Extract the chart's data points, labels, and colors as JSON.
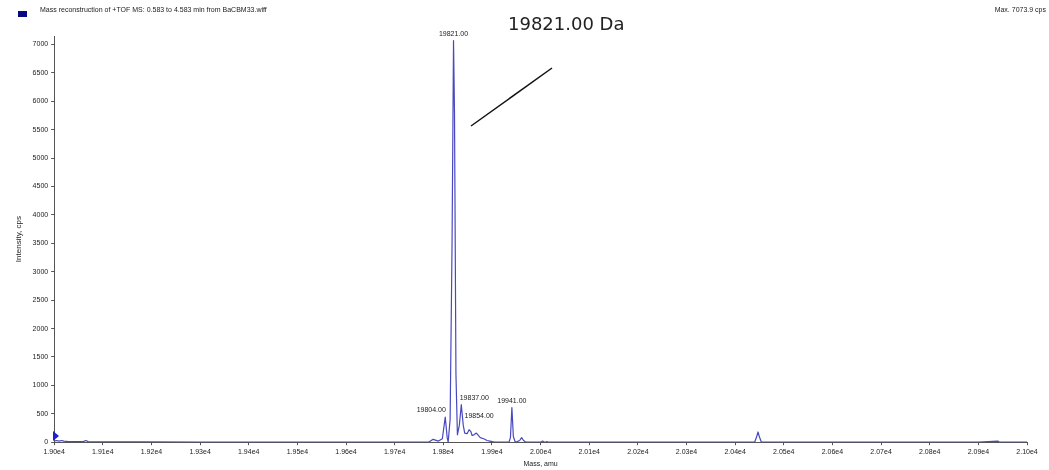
{
  "chart_data": {
    "type": "line",
    "title": "Mass reconstruction of +TOF MS: 0.583 to 4.583 min from BaCBM33.wiff",
    "xlabel": "Mass, amu",
    "ylabel": "Intensity, cps",
    "x": [
      19000,
      19005,
      19010,
      19015,
      19020,
      19030,
      19060,
      19065,
      19070,
      19300,
      19700,
      19770,
      19779,
      19790,
      19798,
      19804,
      19808,
      19810,
      19814,
      19818,
      19821,
      19823,
      19826,
      19829,
      19833,
      19837,
      19841,
      19844,
      19849,
      19853,
      19857,
      19859,
      19863,
      19868,
      19872,
      19876,
      19883,
      19890,
      19896,
      19905,
      19935,
      19938,
      19941,
      19944,
      19948,
      19952,
      19957,
      19961,
      19965,
      19970,
      20000,
      20004,
      20008,
      20010,
      20013,
      20016,
      20200,
      20440,
      20444,
      20447,
      20450,
      20454,
      20600,
      20900,
      20940,
      20943,
      21000
    ],
    "series": [
      {
        "color": "#4848c0",
        "values": [
          20,
          30,
          20,
          30,
          20,
          10,
          10,
          30,
          10,
          0,
          0,
          0,
          50,
          20,
          60,
          440,
          80,
          0,
          400,
          3500,
          7070,
          5800,
          1200,
          130,
          300,
          660,
          300,
          160,
          150,
          220,
          180,
          120,
          130,
          160,
          120,
          80,
          60,
          30,
          20,
          0,
          0,
          80,
          610,
          100,
          0,
          10,
          30,
          80,
          30,
          0,
          0,
          20,
          0,
          0,
          10,
          0,
          0,
          0,
          90,
          180,
          90,
          0,
          0,
          0,
          20,
          0,
          0
        ]
      }
    ],
    "xlim": [
      19000,
      21000
    ],
    "ylim": [
      0,
      7150
    ],
    "xticks": [
      {
        "value": 19000,
        "label": "1.90e4"
      },
      {
        "value": 19100,
        "label": "1.91e4"
      },
      {
        "value": 19200,
        "label": "1.92e4"
      },
      {
        "value": 19300,
        "label": "1.93e4"
      },
      {
        "value": 19400,
        "label": "1.94e4"
      },
      {
        "value": 19500,
        "label": "1.95e4"
      },
      {
        "value": 19600,
        "label": "1.96e4"
      },
      {
        "value": 19700,
        "label": "1.97e4"
      },
      {
        "value": 19800,
        "label": "1.98e4"
      },
      {
        "value": 19900,
        "label": "1.99e4"
      },
      {
        "value": 20000,
        "label": "2.00e4"
      },
      {
        "value": 20100,
        "label": "2.01e4"
      },
      {
        "value": 20200,
        "label": "2.02e4"
      },
      {
        "value": 20300,
        "label": "2.03e4"
      },
      {
        "value": 20400,
        "label": "2.04e4"
      },
      {
        "value": 20500,
        "label": "2.05e4"
      },
      {
        "value": 20600,
        "label": "2.06e4"
      },
      {
        "value": 20700,
        "label": "2.07e4"
      },
      {
        "value": 20800,
        "label": "2.08e4"
      },
      {
        "value": 20900,
        "label": "2.09e4"
      },
      {
        "value": 21000,
        "label": "2.10e4"
      }
    ],
    "yticks": [
      0,
      500,
      1000,
      1500,
      2000,
      2500,
      3000,
      3500,
      4000,
      4500,
      5000,
      5500,
      6000,
      6500,
      7000
    ],
    "grid": false,
    "legend": false,
    "marker": "none",
    "line_style": "solid",
    "annotations": [
      "Max. 7073.9 cps",
      {
        "text": "19804.00",
        "x": 19804,
        "y": 440
      },
      {
        "text": "19821.00",
        "x": 19821,
        "y": 7070
      },
      {
        "text": "19837.00",
        "x": 19837,
        "y": 660
      },
      {
        "text": "19854.00",
        "x": 19853,
        "y": 220
      },
      {
        "text": "19941.00",
        "x": 19941,
        "y": 610
      },
      "19821.00 Da"
    ]
  }
}
